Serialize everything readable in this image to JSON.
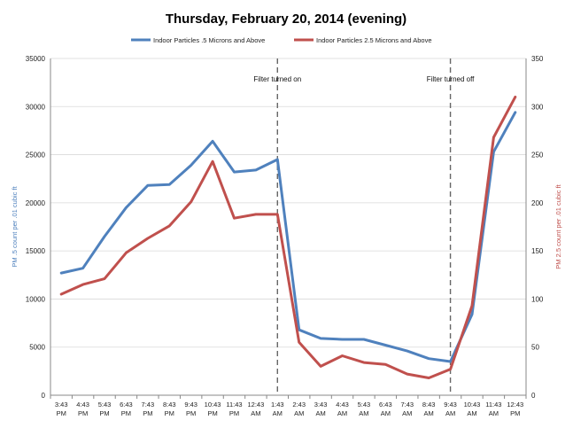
{
  "chart_data": {
    "type": "line",
    "title": "Thursday, February 20, 2014 (evening)",
    "categories": [
      [
        "3:43",
        "PM"
      ],
      [
        "4:43",
        "PM"
      ],
      [
        "5:43",
        "PM"
      ],
      [
        "6:43",
        "PM"
      ],
      [
        "7:43",
        "PM"
      ],
      [
        "8:43",
        "PM"
      ],
      [
        "9:43",
        "PM"
      ],
      [
        "10:43",
        "PM"
      ],
      [
        "11:43",
        "PM"
      ],
      [
        "12:43",
        "AM"
      ],
      [
        "1:43",
        "AM"
      ],
      [
        "2:43",
        "AM"
      ],
      [
        "3:43",
        "AM"
      ],
      [
        "4:43",
        "AM"
      ],
      [
        "5:43",
        "AM"
      ],
      [
        "6:43",
        "AM"
      ],
      [
        "7:43",
        "AM"
      ],
      [
        "8:43",
        "AM"
      ],
      [
        "9:43",
        "AM"
      ],
      [
        "10:43",
        "AM"
      ],
      [
        "11:43",
        "AM"
      ],
      [
        "12:43",
        "PM"
      ]
    ],
    "y_left": {
      "label": "PM .5 count per .01 cubic ft",
      "min": 0,
      "max": 35000,
      "ticks": [
        0,
        5000,
        10000,
        15000,
        20000,
        25000,
        30000,
        35000
      ]
    },
    "y_right": {
      "label": "PM 2.5 count per .01 cubic ft",
      "min": 0,
      "max": 350,
      "ticks": [
        0,
        50,
        100,
        150,
        200,
        250,
        300,
        350
      ]
    },
    "series": [
      {
        "name": "Indoor Particles .5 Microns and Above",
        "axis": "left",
        "color": "#4f81bd",
        "values": [
          12700,
          13200,
          16500,
          19500,
          21800,
          21900,
          23900,
          26400,
          23200,
          23400,
          24500,
          6800,
          5900,
          5800,
          5800,
          5200,
          4600,
          3800,
          3500,
          8400,
          25300,
          29400
        ]
      },
      {
        "name": "Indoor Particles 2.5 Microns and Above",
        "axis": "right",
        "color": "#c0504d",
        "values": [
          105,
          115,
          121,
          148,
          163,
          176,
          201,
          243,
          184,
          188,
          188,
          55,
          30,
          41,
          34,
          32,
          22,
          18,
          27,
          93,
          268,
          310
        ]
      }
    ],
    "annotations": [
      {
        "text": "Filter turned on",
        "at_index": 10
      },
      {
        "text": "Filter turned off",
        "at_index": 18
      }
    ],
    "grid": true,
    "legend": "top"
  }
}
